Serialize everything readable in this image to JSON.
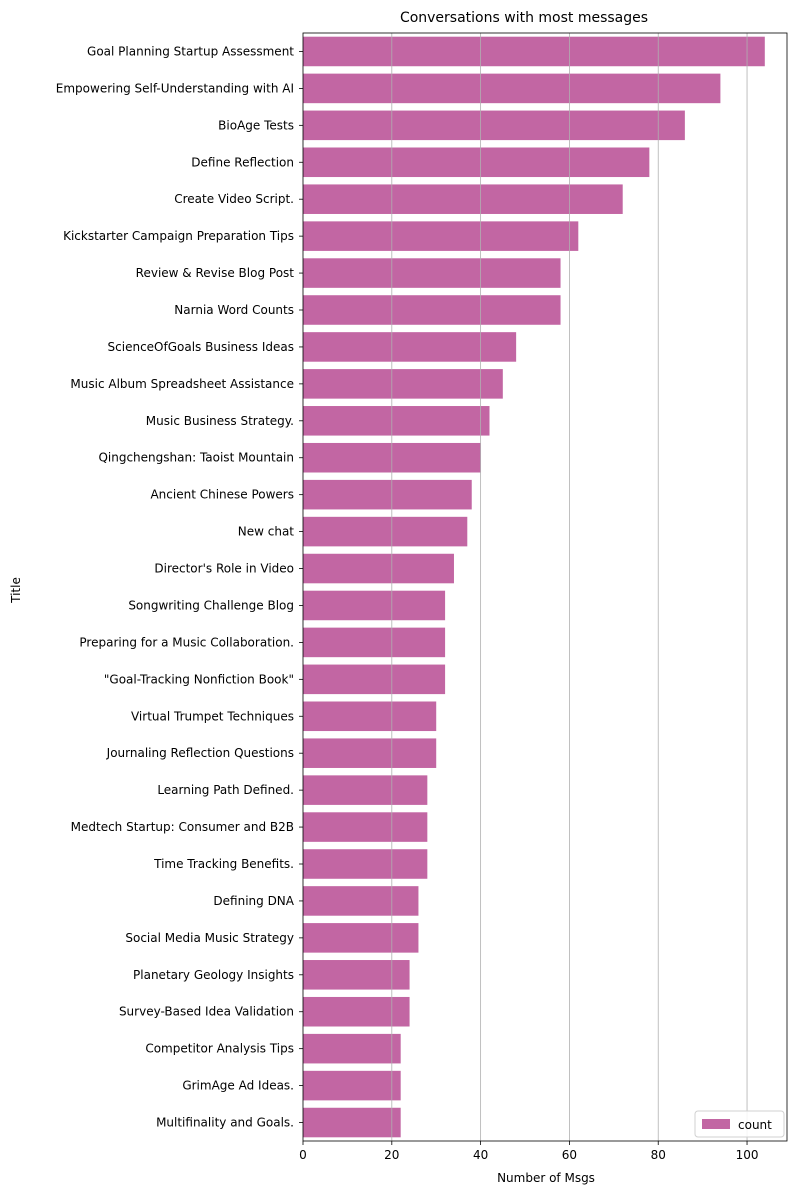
{
  "chart_data": {
    "type": "bar",
    "orientation": "horizontal",
    "title": "Conversations with most messages",
    "xlabel": "Number of Msgs",
    "ylabel": "Title",
    "xlim": [
      0,
      109
    ],
    "xticks": [
      0,
      20,
      40,
      60,
      80,
      100
    ],
    "grid": "vertical",
    "legend": {
      "placement": "bottom-right",
      "entries": [
        "count"
      ]
    },
    "colors": {
      "bar": "#c266a3",
      "grid": "#b0b0b0",
      "axis": "#000000"
    },
    "categories": [
      "Goal Planning Startup Assessment",
      "Empowering Self-Understanding with AI",
      "BioAge Tests",
      "Define Reflection",
      "Create Video Script.",
      "Kickstarter Campaign Preparation Tips",
      "Review & Revise Blog Post",
      "Narnia Word Counts",
      "ScienceOfGoals Business Ideas",
      "Music Album Spreadsheet Assistance",
      "Music Business Strategy.",
      "Qingchengshan: Taoist Mountain",
      "Ancient Chinese Powers",
      "New chat",
      "Director's Role in Video",
      "Songwriting Challenge Blog",
      "Preparing for a Music Collaboration.",
      "\"Goal-Tracking Nonfiction Book\"",
      "Virtual Trumpet Techniques",
      "Journaling Reflection Questions",
      "Learning Path Defined.",
      "Medtech Startup: Consumer and B2B",
      "Time Tracking Benefits.",
      "Defining DNA",
      "Social Media Music Strategy",
      "Planetary Geology Insights",
      "Survey-Based Idea Validation",
      "Competitor Analysis Tips",
      "GrimAge Ad Ideas.",
      "Multifinality and Goals."
    ],
    "series": [
      {
        "name": "count",
        "values": [
          104,
          94,
          86,
          78,
          72,
          62,
          58,
          58,
          48,
          45,
          42,
          40,
          38,
          37,
          34,
          32,
          32,
          32,
          30,
          30,
          28,
          28,
          28,
          26,
          26,
          24,
          24,
          22,
          22,
          22
        ]
      }
    ]
  }
}
